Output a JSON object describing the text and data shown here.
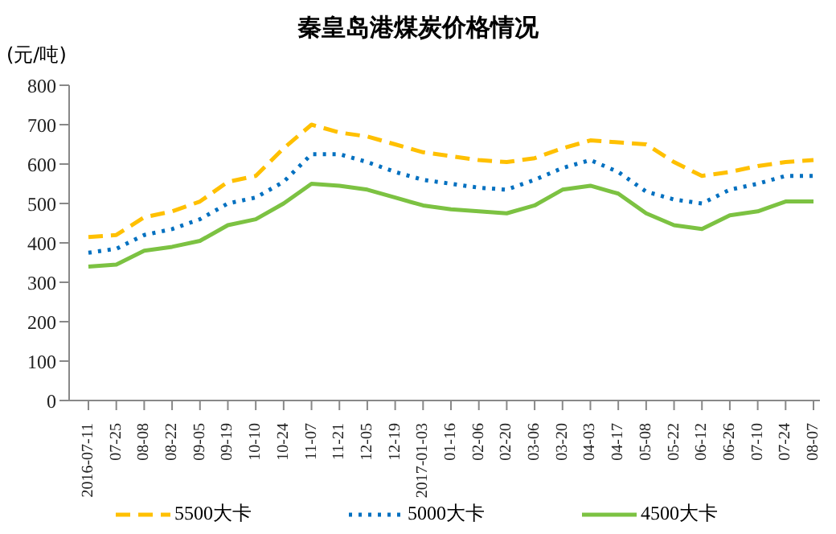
{
  "chart_data": {
    "type": "line",
    "title": "秦皇岛港煤炭价格情况",
    "ylabel": "(元/吨)",
    "categories": [
      "2016-07-11",
      "07-25",
      "08-08",
      "08-22",
      "09-05",
      "09-19",
      "10-10",
      "10-24",
      "11-07",
      "11-21",
      "12-05",
      "12-19",
      "2017-01-03",
      "01-16",
      "02-06",
      "02-20",
      "03-06",
      "03-20",
      "04-03",
      "04-17",
      "05-08",
      "05-22",
      "06-12",
      "06-26",
      "07-10",
      "07-24",
      "08-07"
    ],
    "series": [
      {
        "name": "5500大卡",
        "color": "#ffc000",
        "line_style": "dashed",
        "values": [
          415,
          420,
          465,
          480,
          505,
          555,
          570,
          640,
          700,
          680,
          670,
          650,
          630,
          620,
          610,
          605,
          615,
          640,
          660,
          655,
          650,
          605,
          570,
          580,
          595,
          605,
          610
        ]
      },
      {
        "name": "5000大卡",
        "color": "#0070c0",
        "line_style": "dotted",
        "values": [
          375,
          385,
          420,
          435,
          460,
          500,
          515,
          555,
          625,
          625,
          605,
          580,
          560,
          550,
          540,
          535,
          560,
          590,
          610,
          580,
          530,
          510,
          500,
          535,
          550,
          570,
          570
        ]
      },
      {
        "name": "4500大卡",
        "color": "#7cc242",
        "line_style": "solid",
        "values": [
          340,
          345,
          380,
          390,
          405,
          445,
          460,
          500,
          550,
          545,
          535,
          515,
          495,
          485,
          480,
          475,
          495,
          535,
          545,
          525,
          475,
          445,
          435,
          470,
          480,
          505,
          505
        ]
      }
    ],
    "ylim": [
      0,
      800
    ],
    "yticks": [
      0,
      100,
      200,
      300,
      400,
      500,
      600,
      700,
      800
    ],
    "grid": false,
    "legend": "bottom",
    "marker": "none"
  }
}
